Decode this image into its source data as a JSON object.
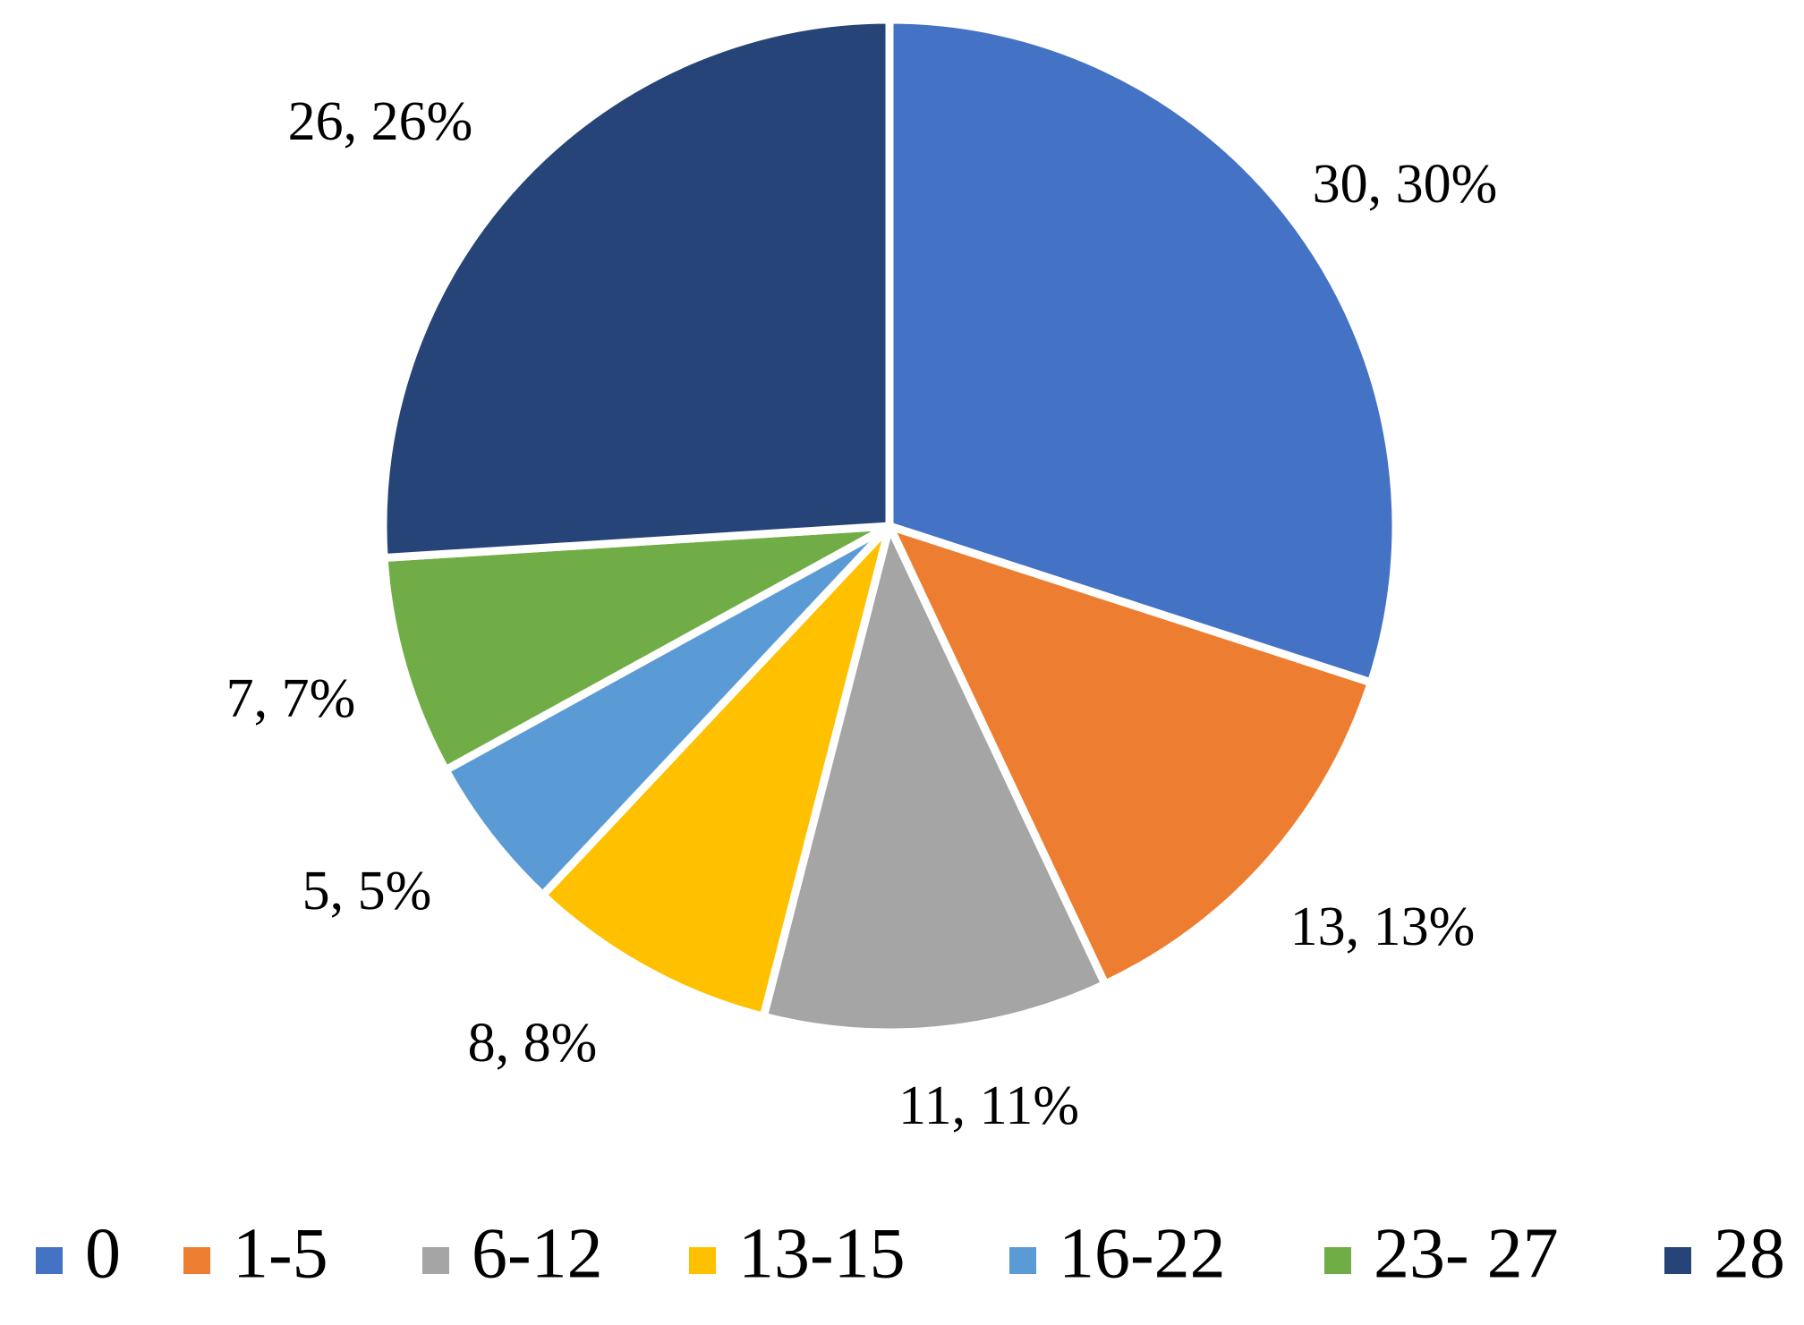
{
  "chart_data": {
    "type": "pie",
    "title": "",
    "categories": [
      "0",
      "1-5",
      "6-12",
      "13-15",
      "16-22",
      "23- 27",
      "28"
    ],
    "values": [
      30,
      13,
      11,
      8,
      5,
      7,
      26
    ],
    "data_labels": [
      "30, 30%",
      "13, 13%",
      "11, 11%",
      "8, 8%",
      "5, 5%",
      "7, 7%",
      "26, 26%"
    ],
    "colors": [
      "#4472C4",
      "#ED7D31",
      "#A5A5A5",
      "#FFC000",
      "#5B9BD5",
      "#70AD47",
      "#264478"
    ],
    "start_angle": "12 o'clock",
    "direction": "clockwise",
    "legend_position": "bottom"
  }
}
